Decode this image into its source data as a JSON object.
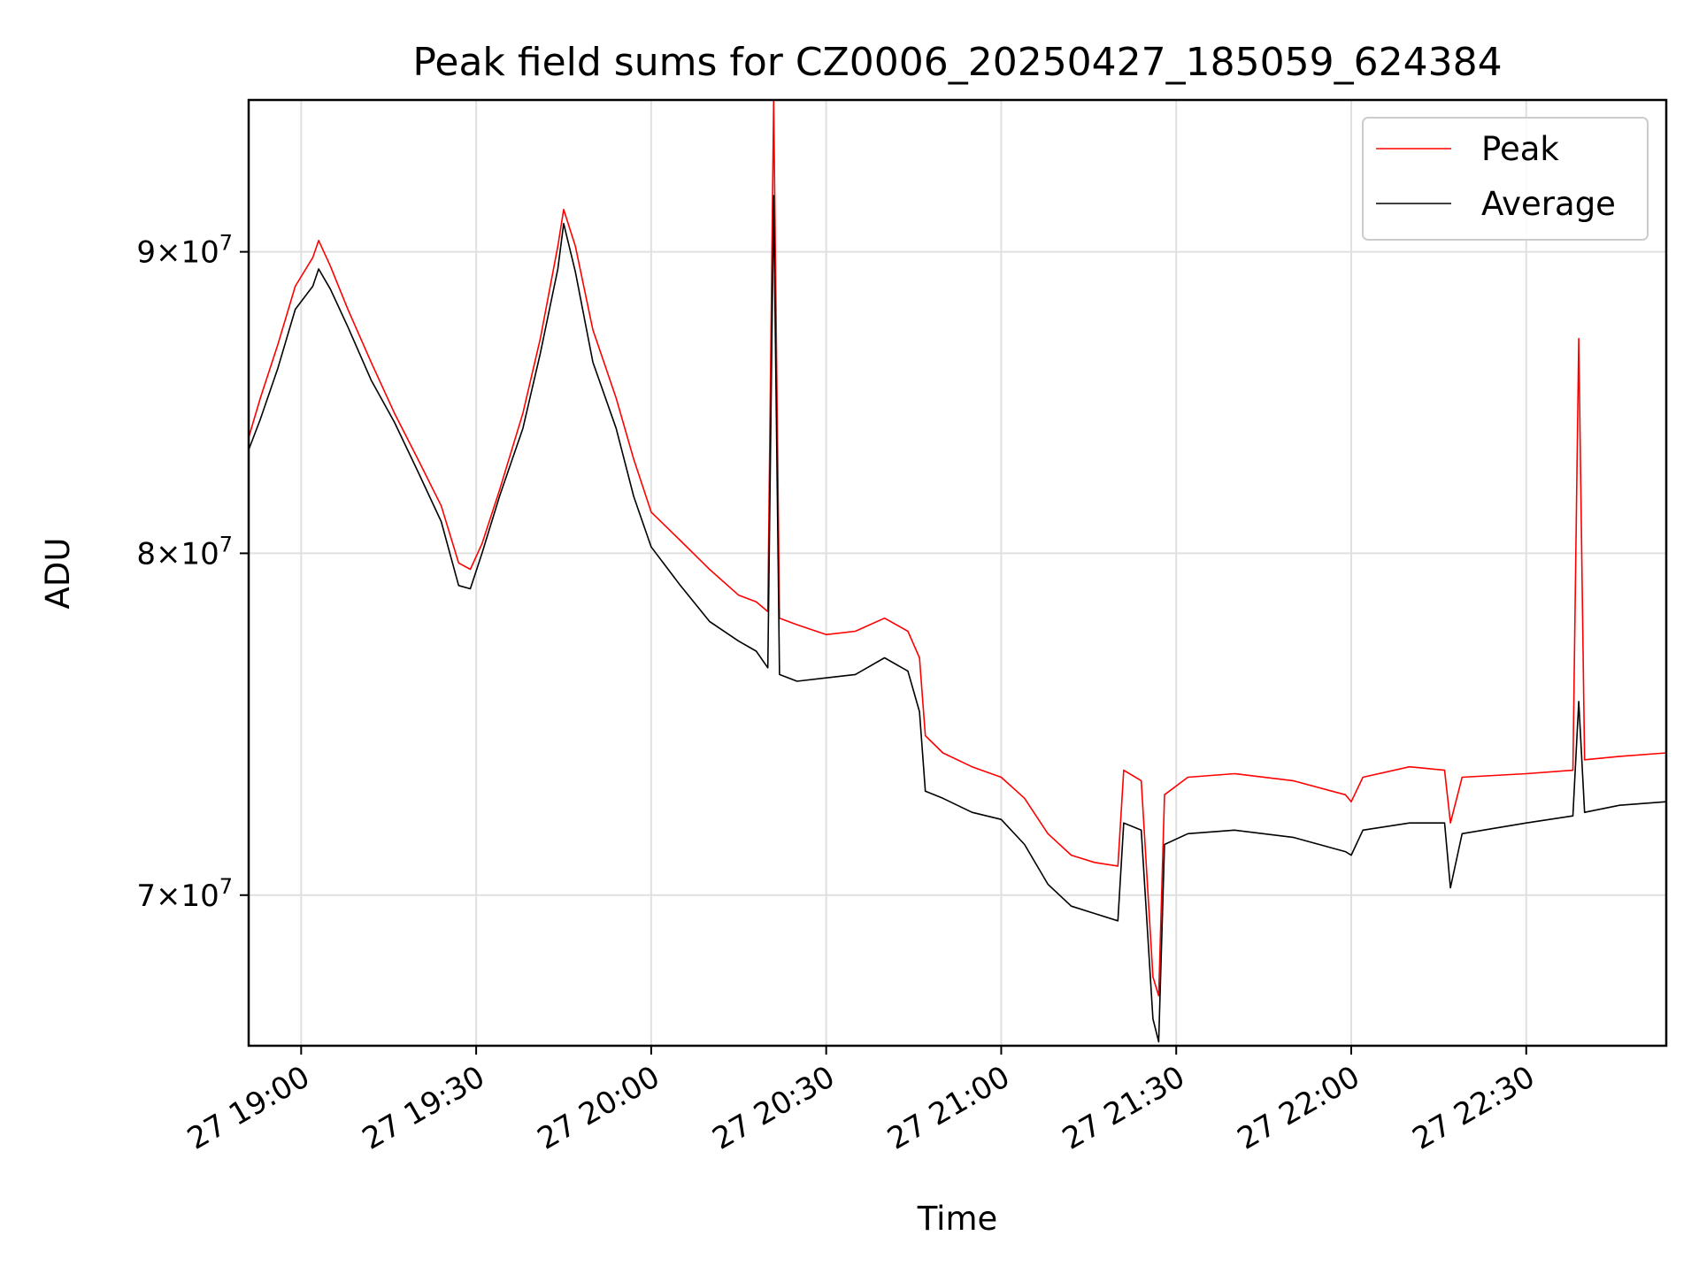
{
  "chart_data": {
    "type": "line",
    "title": "Peak field sums for CZ0006_20250427_185059_624384",
    "xlabel": "Time",
    "ylabel": "ADU",
    "xlim": [
      "2025-04-27 18:51",
      "2025-04-27 22:54"
    ],
    "ylim": [
      66000000,
      95500000
    ],
    "yscale": "log",
    "grid": true,
    "legend_position": "top-right",
    "x_ticks": [
      "27 19:00",
      "27 19:30",
      "27 20:00",
      "27 20:30",
      "27 21:00",
      "27 21:30",
      "27 22:00",
      "27 22:30"
    ],
    "y_ticks": [
      {
        "value": 70000000,
        "mantissa": "7",
        "base": "10",
        "exp": "7"
      },
      {
        "value": 80000000,
        "mantissa": "8",
        "base": "10",
        "exp": "7"
      },
      {
        "value": 90000000,
        "mantissa": "9",
        "base": "10",
        "exp": "7"
      }
    ],
    "series": [
      {
        "name": "Peak",
        "color": "#ff0000",
        "points": [
          [
            "2025-04-27 18:51",
            83700000
          ],
          [
            "2025-04-27 18:53",
            85000000
          ],
          [
            "2025-04-27 18:56",
            86800000
          ],
          [
            "2025-04-27 18:59",
            88800000
          ],
          [
            "2025-04-27 19:02",
            89800000
          ],
          [
            "2025-04-27 19:03",
            90400000
          ],
          [
            "2025-04-27 19:05",
            89500000
          ],
          [
            "2025-04-27 19:08",
            88000000
          ],
          [
            "2025-04-27 19:12",
            86200000
          ],
          [
            "2025-04-27 19:16",
            84500000
          ],
          [
            "2025-04-27 19:20",
            83000000
          ],
          [
            "2025-04-27 19:24",
            81500000
          ],
          [
            "2025-04-27 19:27",
            79700000
          ],
          [
            "2025-04-27 19:29",
            79500000
          ],
          [
            "2025-04-27 19:31",
            80300000
          ],
          [
            "2025-04-27 19:34",
            82000000
          ],
          [
            "2025-04-27 19:38",
            84500000
          ],
          [
            "2025-04-27 19:41",
            87000000
          ],
          [
            "2025-04-27 19:44",
            90200000
          ],
          [
            "2025-04-27 19:45",
            91500000
          ],
          [
            "2025-04-27 19:47",
            90200000
          ],
          [
            "2025-04-27 19:50",
            87300000
          ],
          [
            "2025-04-27 19:54",
            85000000
          ],
          [
            "2025-04-27 19:57",
            83000000
          ],
          [
            "2025-04-27 20:00",
            81300000
          ],
          [
            "2025-04-27 20:05",
            80400000
          ],
          [
            "2025-04-27 20:10",
            79500000
          ],
          [
            "2025-04-27 20:15",
            78700000
          ],
          [
            "2025-04-27 20:18",
            78500000
          ],
          [
            "2025-04-27 20:20",
            78200000
          ],
          [
            "2025-04-27 20:21",
            95500000
          ],
          [
            "2025-04-27 20:22",
            78000000
          ],
          [
            "2025-04-27 20:25",
            77800000
          ],
          [
            "2025-04-27 20:30",
            77500000
          ],
          [
            "2025-04-27 20:35",
            77600000
          ],
          [
            "2025-04-27 20:40",
            78000000
          ],
          [
            "2025-04-27 20:44",
            77600000
          ],
          [
            "2025-04-27 20:46",
            76800000
          ],
          [
            "2025-04-27 20:47",
            74500000
          ],
          [
            "2025-04-27 20:50",
            74000000
          ],
          [
            "2025-04-27 20:55",
            73600000
          ],
          [
            "2025-04-27 21:00",
            73300000
          ],
          [
            "2025-04-27 21:04",
            72700000
          ],
          [
            "2025-04-27 21:08",
            71700000
          ],
          [
            "2025-04-27 21:12",
            71100000
          ],
          [
            "2025-04-27 21:16",
            70900000
          ],
          [
            "2025-04-27 21:20",
            70800000
          ],
          [
            "2025-04-27 21:21",
            73500000
          ],
          [
            "2025-04-27 21:24",
            73200000
          ],
          [
            "2025-04-27 21:26",
            67800000
          ],
          [
            "2025-04-27 21:27",
            67300000
          ],
          [
            "2025-04-27 21:28",
            72800000
          ],
          [
            "2025-04-27 21:32",
            73300000
          ],
          [
            "2025-04-27 21:40",
            73400000
          ],
          [
            "2025-04-27 21:50",
            73200000
          ],
          [
            "2025-04-27 21:59",
            72800000
          ],
          [
            "2025-04-27 22:00",
            72600000
          ],
          [
            "2025-04-27 22:02",
            73300000
          ],
          [
            "2025-04-27 22:10",
            73600000
          ],
          [
            "2025-04-27 22:16",
            73500000
          ],
          [
            "2025-04-27 22:17",
            72000000
          ],
          [
            "2025-04-27 22:19",
            73300000
          ],
          [
            "2025-04-27 22:30",
            73400000
          ],
          [
            "2025-04-27 22:38",
            73500000
          ],
          [
            "2025-04-27 22:39",
            87000000
          ],
          [
            "2025-04-27 22:40",
            73800000
          ],
          [
            "2025-04-27 22:46",
            73900000
          ],
          [
            "2025-04-27 22:54",
            74000000
          ]
        ]
      },
      {
        "name": "Average",
        "color": "#000000",
        "points": [
          [
            "2025-04-27 18:51",
            83300000
          ],
          [
            "2025-04-27 18:53",
            84300000
          ],
          [
            "2025-04-27 18:56",
            86000000
          ],
          [
            "2025-04-27 18:59",
            88000000
          ],
          [
            "2025-04-27 19:02",
            88800000
          ],
          [
            "2025-04-27 19:03",
            89400000
          ],
          [
            "2025-04-27 19:05",
            88700000
          ],
          [
            "2025-04-27 19:08",
            87400000
          ],
          [
            "2025-04-27 19:12",
            85600000
          ],
          [
            "2025-04-27 19:16",
            84200000
          ],
          [
            "2025-04-27 19:20",
            82600000
          ],
          [
            "2025-04-27 19:24",
            81000000
          ],
          [
            "2025-04-27 19:27",
            79000000
          ],
          [
            "2025-04-27 19:29",
            78900000
          ],
          [
            "2025-04-27 19:31",
            80000000
          ],
          [
            "2025-04-27 19:34",
            81800000
          ],
          [
            "2025-04-27 19:38",
            84000000
          ],
          [
            "2025-04-27 19:41",
            86500000
          ],
          [
            "2025-04-27 19:44",
            89400000
          ],
          [
            "2025-04-27 19:45",
            91000000
          ],
          [
            "2025-04-27 19:47",
            89300000
          ],
          [
            "2025-04-27 19:50",
            86200000
          ],
          [
            "2025-04-27 19:54",
            84000000
          ],
          [
            "2025-04-27 19:57",
            81800000
          ],
          [
            "2025-04-27 20:00",
            80200000
          ],
          [
            "2025-04-27 20:05",
            79000000
          ],
          [
            "2025-04-27 20:10",
            77900000
          ],
          [
            "2025-04-27 20:15",
            77300000
          ],
          [
            "2025-04-27 20:18",
            77000000
          ],
          [
            "2025-04-27 20:20",
            76500000
          ],
          [
            "2025-04-27 20:21",
            92000000
          ],
          [
            "2025-04-27 20:22",
            76300000
          ],
          [
            "2025-04-27 20:25",
            76100000
          ],
          [
            "2025-04-27 20:30",
            76200000
          ],
          [
            "2025-04-27 20:35",
            76300000
          ],
          [
            "2025-04-27 20:40",
            76800000
          ],
          [
            "2025-04-27 20:44",
            76400000
          ],
          [
            "2025-04-27 20:46",
            75200000
          ],
          [
            "2025-04-27 20:47",
            72900000
          ],
          [
            "2025-04-27 20:50",
            72700000
          ],
          [
            "2025-04-27 20:55",
            72300000
          ],
          [
            "2025-04-27 21:00",
            72100000
          ],
          [
            "2025-04-27 21:04",
            71400000
          ],
          [
            "2025-04-27 21:08",
            70300000
          ],
          [
            "2025-04-27 21:12",
            69700000
          ],
          [
            "2025-04-27 21:16",
            69500000
          ],
          [
            "2025-04-27 21:20",
            69300000
          ],
          [
            "2025-04-27 21:21",
            72000000
          ],
          [
            "2025-04-27 21:24",
            71800000
          ],
          [
            "2025-04-27 21:26",
            66700000
          ],
          [
            "2025-04-27 21:27",
            66100000
          ],
          [
            "2025-04-27 21:28",
            71400000
          ],
          [
            "2025-04-27 21:32",
            71700000
          ],
          [
            "2025-04-27 21:40",
            71800000
          ],
          [
            "2025-04-27 21:50",
            71600000
          ],
          [
            "2025-04-27 21:59",
            71200000
          ],
          [
            "2025-04-27 22:00",
            71100000
          ],
          [
            "2025-04-27 22:02",
            71800000
          ],
          [
            "2025-04-27 22:10",
            72000000
          ],
          [
            "2025-04-27 22:16",
            72000000
          ],
          [
            "2025-04-27 22:17",
            70200000
          ],
          [
            "2025-04-27 22:19",
            71700000
          ],
          [
            "2025-04-27 22:30",
            72000000
          ],
          [
            "2025-04-27 22:38",
            72200000
          ],
          [
            "2025-04-27 22:39",
            75500000
          ],
          [
            "2025-04-27 22:40",
            72300000
          ],
          [
            "2025-04-27 22:46",
            72500000
          ],
          [
            "2025-04-27 22:54",
            72600000
          ]
        ]
      }
    ]
  }
}
